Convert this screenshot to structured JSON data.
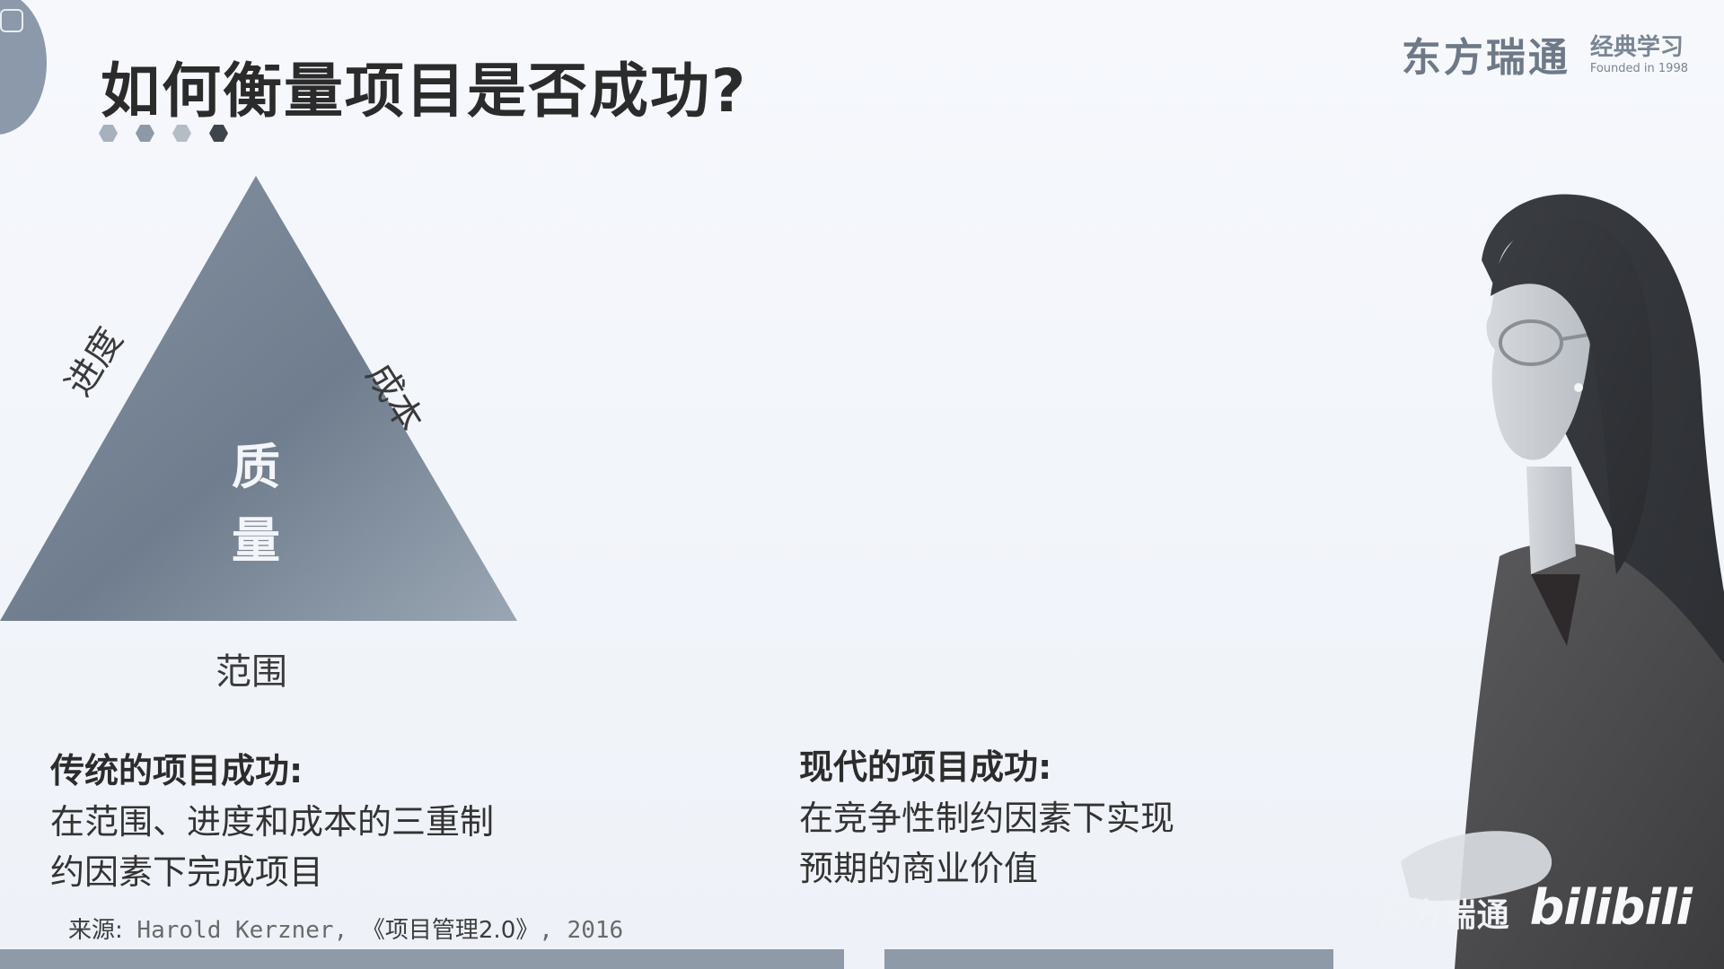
{
  "slide": {
    "title": "如何衡量项目是否成功?",
    "dots": [
      "#a7b1bd",
      "#8d99a7",
      "#b4bcc6",
      "#3e444c"
    ]
  },
  "brand": {
    "name": "东方瑞通",
    "sub": "经典学习",
    "founded": "Founded in 1998"
  },
  "triangle": {
    "left_label": "进度",
    "right_label": "成本",
    "bottom_label": "范围",
    "center_label": "质量"
  },
  "traditional": {
    "heading": "传统的项目成功:",
    "body": "在范围、进度和成本的三重制约因素下完成项目"
  },
  "modern": {
    "heading": "现代的项目成功:",
    "body": "在竞争性制约因素下实现预期的商业价值"
  },
  "source": {
    "label": "来源:",
    "author": "Harold Kerzner,",
    "book": "《项目管理2.0》",
    "year": ", 2016"
  },
  "watermark": {
    "name": "东方瑞通",
    "logo": "bilibili"
  },
  "colors": {
    "triangle_fill": "#7f8c9b",
    "accent_gray": "#8e9aa8"
  }
}
